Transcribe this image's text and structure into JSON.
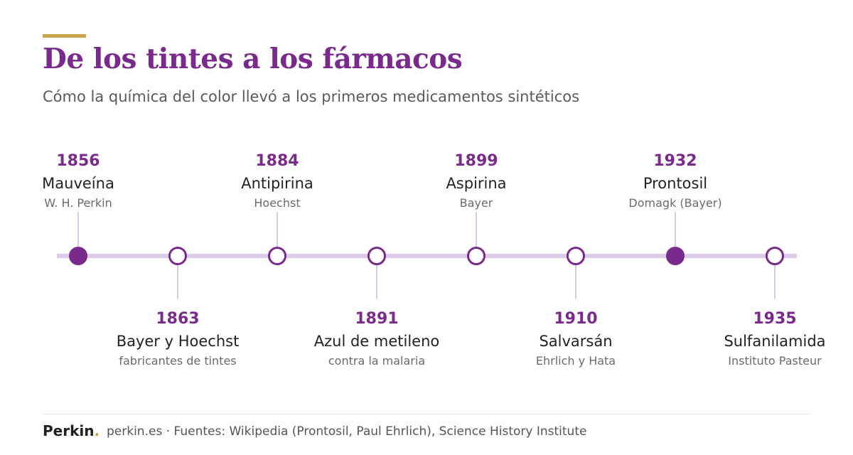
{
  "header": {
    "title": "De los tintes a los fármacos",
    "subtitle": "Cómo la química del color llevó a los primeros medicamentos sintéticos"
  },
  "colors": {
    "accent": "#7a2a8c",
    "gold": "#c9a24a",
    "track": "#dccbe7"
  },
  "events": [
    {
      "year": "1856",
      "name": "Mauveína",
      "detail": "W. H. Perkin",
      "position": "above",
      "marker": "filled"
    },
    {
      "year": "1863",
      "name": "Bayer y Hoechst",
      "detail": "fabricantes de tintes",
      "position": "below",
      "marker": "hollow"
    },
    {
      "year": "1884",
      "name": "Antipirina",
      "detail": "Hoechst",
      "position": "above",
      "marker": "hollow"
    },
    {
      "year": "1891",
      "name": "Azul de metileno",
      "detail": "contra la malaria",
      "position": "below",
      "marker": "hollow"
    },
    {
      "year": "1899",
      "name": "Aspirina",
      "detail": "Bayer",
      "position": "above",
      "marker": "hollow"
    },
    {
      "year": "1910",
      "name": "Salvarsán",
      "detail": "Ehrlich y Hata",
      "position": "below",
      "marker": "hollow"
    },
    {
      "year": "1932",
      "name": "Prontosil",
      "detail": "Domagk (Bayer)",
      "position": "above",
      "marker": "filled"
    },
    {
      "year": "1935",
      "name": "Sulfanilamida",
      "detail": "Instituto Pasteur",
      "position": "below",
      "marker": "hollow"
    }
  ],
  "footer": {
    "brand": "Perkin",
    "brand_dot": ".",
    "text": "perkin.es · Fuentes: Wikipedia (Prontosil, Paul Ehrlich), Science History Institute"
  }
}
